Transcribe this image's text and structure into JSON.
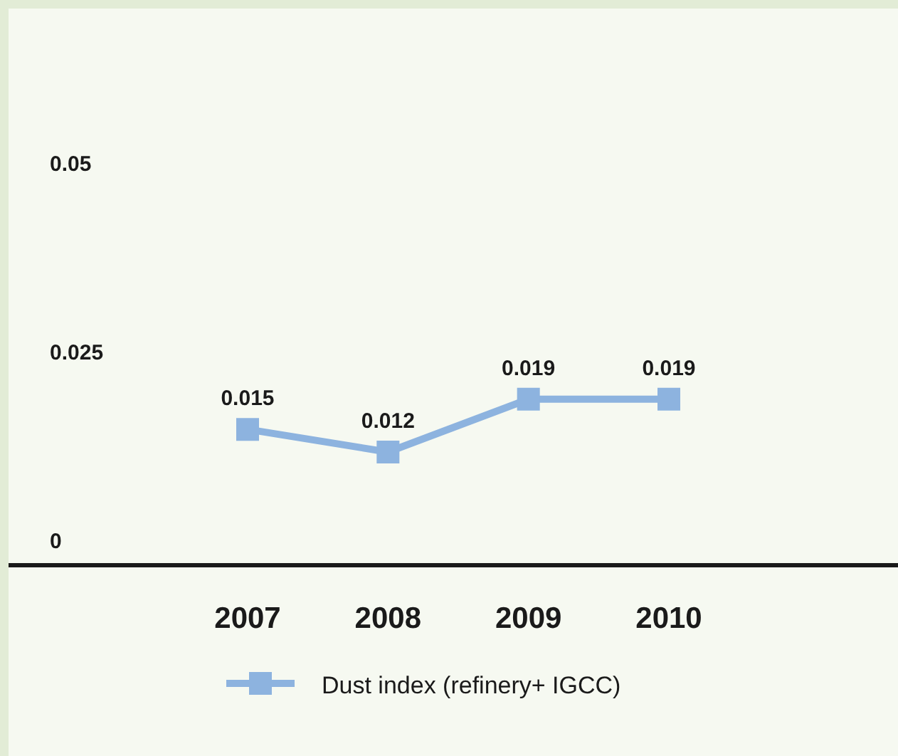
{
  "chart_data": {
    "type": "line",
    "categories": [
      "2007",
      "2008",
      "2009",
      "2010"
    ],
    "series": [
      {
        "name": "Dust index (refinery+ IGCC)",
        "color": "#8db3df",
        "values": [
          0.015,
          0.012,
          0.019,
          0.019
        ]
      }
    ],
    "ylim": [
      -0.003,
      0.07
    ],
    "yticks": [
      0,
      0.025,
      0.05
    ],
    "marker": "square",
    "data_labels": true,
    "grid": false,
    "legend": "bottom"
  }
}
